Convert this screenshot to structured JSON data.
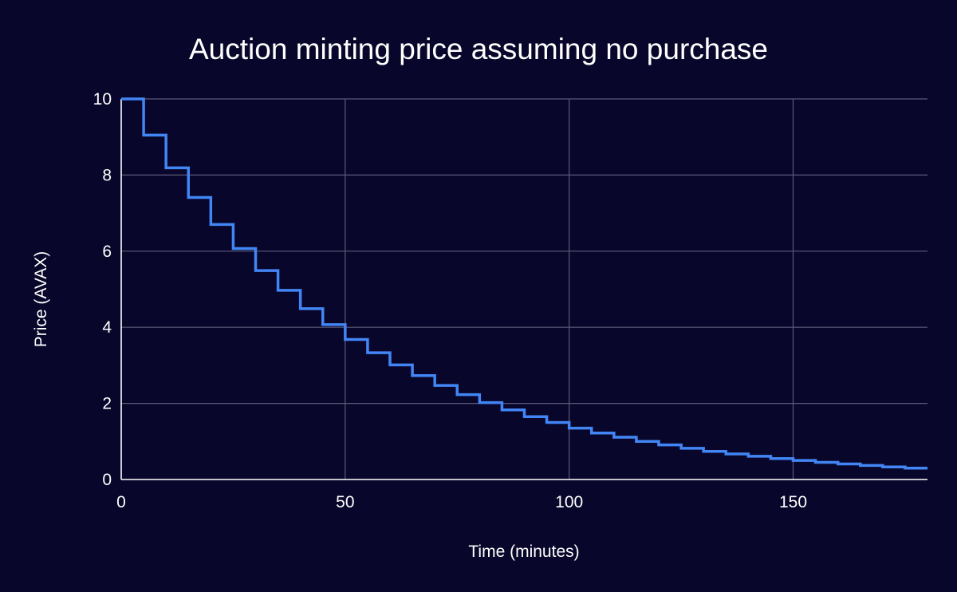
{
  "chart_data": {
    "type": "line",
    "style": "step",
    "title": "Auction minting price assuming no purchase",
    "xlabel": "Time (minutes)",
    "ylabel": "Price (AVAX)",
    "xlim": [
      0,
      180
    ],
    "ylim": [
      0,
      10
    ],
    "xticks": [
      0,
      50,
      100,
      150
    ],
    "yticks": [
      0,
      2,
      4,
      6,
      8,
      10
    ],
    "grid": true,
    "colors": {
      "background": "#08062a",
      "series": "#4285f4",
      "grid": "#5c5a7a",
      "text": "#ffffff"
    },
    "series": [
      {
        "name": "Price (AVAX)",
        "step_interval_minutes": 5,
        "x": [
          0,
          5,
          10,
          15,
          20,
          25,
          30,
          35,
          40,
          45,
          50,
          55,
          60,
          65,
          70,
          75,
          80,
          85,
          90,
          95,
          100,
          105,
          110,
          115,
          120,
          125,
          130,
          135,
          140,
          145,
          150,
          155,
          160,
          165,
          170,
          175
        ],
        "values": [
          10,
          9.05,
          8.19,
          7.41,
          6.7,
          6.07,
          5.49,
          4.97,
          4.49,
          4.07,
          3.68,
          3.33,
          3.01,
          2.73,
          2.47,
          2.23,
          2.02,
          1.83,
          1.65,
          1.5,
          1.35,
          1.22,
          1.11,
          1.0,
          0.91,
          0.82,
          0.74,
          0.67,
          0.61,
          0.55,
          0.5,
          0.45,
          0.41,
          0.37,
          0.33,
          0.3
        ]
      }
    ]
  }
}
